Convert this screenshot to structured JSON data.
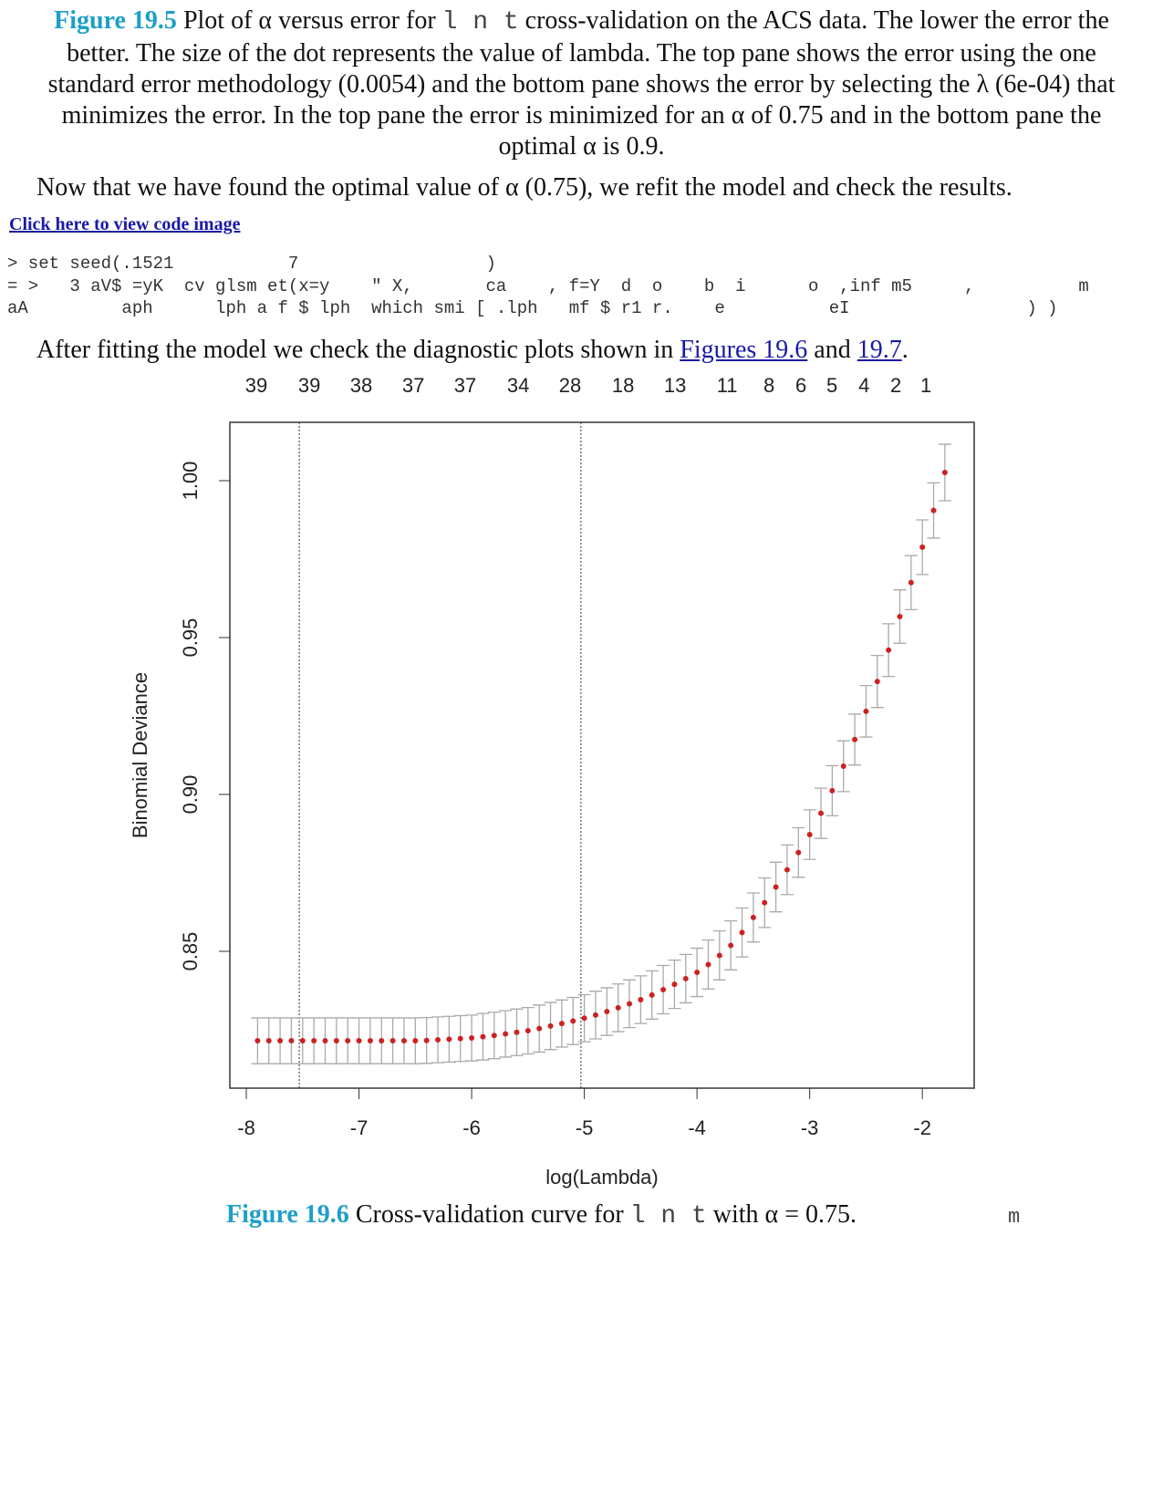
{
  "caption_19_5": {
    "label": "Figure 19.5",
    "text1": " Plot of α versus error for ",
    "code": "l n t",
    "text2": " cross-validation on the ACS data. The lower the error the better. The size of the dot represents the value of lambda. The top pane shows the error using the one standard error methodology (0.0054) and the bottom pane shows the error by selecting the λ (6e-04) that minimizes the error. In the top pane the error is minimized for an α of 0.75 and in the bottom pane the optimal α is 0.9."
  },
  "paragraph_1": "Now that we have found the optimal value of α (0.75), we refit the model and check the results.",
  "code_link": "Click here to view code image",
  "code_lines": [
    "> set seed(.1521           7                  )",
    "= >   3 aV$ =yK  cv glsm et(x=y    \" X,       ca    , f=Y  d  o    b  i      o  ,inf m5     ,          m",
    "aA         aph      lph a f $ lph  which smi [ .lph   mf $ r1 r.    e          eI                 ) )"
  ],
  "paragraph_2": {
    "text1": "After fitting the model we check the diagnostic plots shown in ",
    "link1": "Figures 19.6",
    "text2": " and ",
    "link2": "19.7",
    "text3": "."
  },
  "chart_data": {
    "type": "scatter",
    "x_label": "log(Lambda)",
    "y_label": "Binomial Deviance",
    "xlim": [
      -8.146,
      -1.54
    ],
    "ylim": [
      0.8064,
      1.0186
    ],
    "xticks": [
      -8,
      -7,
      -6,
      -5,
      -4,
      -3,
      -2
    ],
    "yticks": [
      0.85,
      {
        "value": 0.9,
        "label": "0.90"
      },
      0.95,
      {
        "value": 1,
        "label": "1.00"
      }
    ],
    "top_ticks": [
      {
        "value": -7.911,
        "label": "39"
      },
      {
        "value": -7.441,
        "label": "39"
      },
      {
        "value": -6.98,
        "label": "38"
      },
      {
        "value": -6.518,
        "label": "37"
      },
      {
        "value": -6.057,
        "label": "37"
      },
      {
        "value": -5.587,
        "label": "34"
      },
      {
        "value": -5.126,
        "label": "28"
      },
      {
        "value": -4.656,
        "label": "18"
      },
      {
        "value": -4.194,
        "label": "13"
      },
      {
        "value": -3.733,
        "label": "11"
      },
      {
        "value": -3.36,
        "label": "8"
      },
      {
        "value": -3.077,
        "label": "6"
      },
      {
        "value": -2.802,
        "label": "5"
      },
      {
        "value": -2.518,
        "label": "4"
      },
      {
        "value": -2.235,
        "label": "2"
      },
      {
        "value": -1.968,
        "label": "1"
      }
    ],
    "vlines": [
      -7.53,
      -5.03
    ],
    "color": "#cc2222",
    "error_color": "#aaaaaa",
    "x": [
      -7.9,
      -7.8,
      -7.7,
      -7.6,
      -7.5,
      -7.4,
      -7.3,
      -7.2,
      -7.1,
      -7.0,
      -6.9,
      -6.8,
      -6.7,
      -6.6,
      -6.5,
      -6.4,
      -6.3,
      -6.2,
      -6.1,
      -6.0,
      -5.9,
      -5.8,
      -5.7,
      -5.6,
      -5.5,
      -5.4,
      -5.3,
      -5.2,
      -5.1,
      -5.0,
      -4.9,
      -4.8,
      -4.7,
      -4.6,
      -4.5,
      -4.4,
      -4.3,
      -4.2,
      -4.1,
      -4.0,
      -3.9,
      -3.8,
      -3.7,
      -3.6,
      -3.5,
      -3.4,
      -3.3,
      -3.2,
      -3.1,
      -3.0,
      -2.9,
      -2.8,
      -2.7,
      -2.6,
      -2.5,
      -2.4,
      -2.3,
      -2.2,
      -2.1,
      -2.0,
      -1.9,
      -1.8
    ],
    "values": [
      0.8215,
      0.8215,
      0.8215,
      0.8215,
      0.8215,
      0.8215,
      0.8215,
      0.8215,
      0.8215,
      0.8215,
      0.8215,
      0.8215,
      0.8215,
      0.8215,
      0.8215,
      0.8216,
      0.8218,
      0.822,
      0.8222,
      0.8224,
      0.8228,
      0.8232,
      0.8237,
      0.8242,
      0.8247,
      0.8254,
      0.8262,
      0.827,
      0.8278,
      0.8287,
      0.8297,
      0.8308,
      0.832,
      0.8333,
      0.8346,
      0.8361,
      0.8378,
      0.8395,
      0.8413,
      0.8433,
      0.8458,
      0.8487,
      0.8519,
      0.856,
      0.8608,
      0.8655,
      0.8705,
      0.876,
      0.8815,
      0.8872,
      0.894,
      0.9012,
      0.909,
      0.9175,
      0.9265,
      0.936,
      0.946,
      0.9567,
      0.9675,
      0.9788,
      0.9905,
      1.0026
    ],
    "errors": [
      0.0073,
      0.0073,
      0.0073,
      0.0073,
      0.0073,
      0.0073,
      0.0073,
      0.0073,
      0.0073,
      0.0073,
      0.0073,
      0.0073,
      0.0073,
      0.0073,
      0.0073,
      0.0073,
      0.0073,
      0.0073,
      0.0073,
      0.0073,
      0.0074,
      0.0074,
      0.0074,
      0.0074,
      0.0074,
      0.0075,
      0.0075,
      0.0075,
      0.0075,
      0.0075,
      0.0076,
      0.0076,
      0.0076,
      0.0076,
      0.0076,
      0.0077,
      0.0077,
      0.0077,
      0.0077,
      0.0077,
      0.0078,
      0.0078,
      0.0078,
      0.0078,
      0.0078,
      0.0079,
      0.0079,
      0.0079,
      0.0079,
      0.0079,
      0.008,
      0.008,
      0.0081,
      0.0081,
      0.0082,
      0.0083,
      0.0084,
      0.0085,
      0.0086,
      0.0087,
      0.0088,
      0.009
    ]
  },
  "caption_19_6": {
    "label": "Figure 19.6",
    "text1": " Cross-validation curve for ",
    "code": "l n t",
    "text2": " with α = 0.75.",
    "stray": "m"
  }
}
